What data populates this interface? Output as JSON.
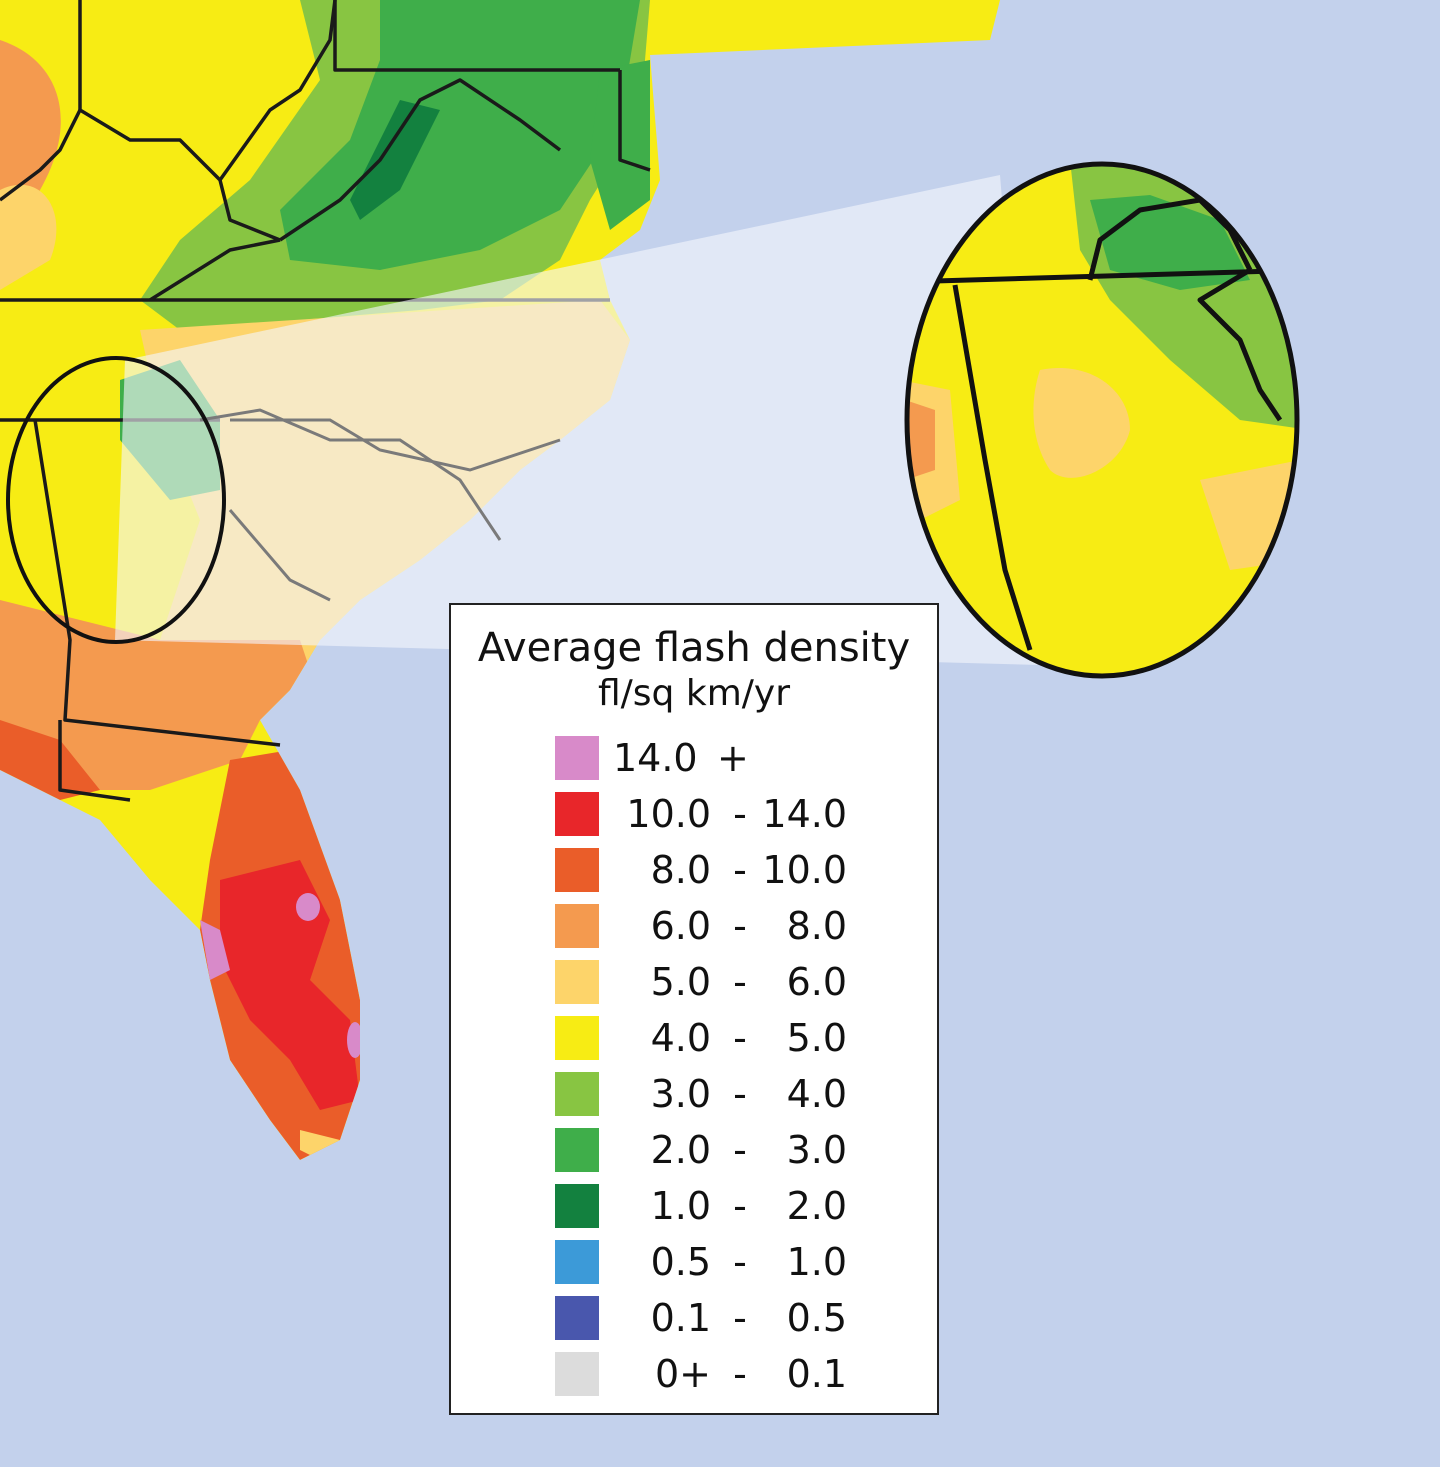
{
  "legend": {
    "title": "Average flash density",
    "units": "fl/sq km/yr",
    "classes": [
      {
        "low": "14.0",
        "sep": "+",
        "high": "",
        "color": "#d88ac9"
      },
      {
        "low": "10.0",
        "sep": "-",
        "high": "14.0",
        "color": "#e8262a"
      },
      {
        "low": "8.0",
        "sep": "-",
        "high": "10.0",
        "color": "#ea5d29"
      },
      {
        "low": "6.0",
        "sep": "-",
        "high": "8.0",
        "color": "#f49a4f"
      },
      {
        "low": "5.0",
        "sep": "-",
        "high": "6.0",
        "color": "#fdd46a"
      },
      {
        "low": "4.0",
        "sep": "-",
        "high": "5.0",
        "color": "#f7ec14"
      },
      {
        "low": "3.0",
        "sep": "-",
        "high": "4.0",
        "color": "#88c542"
      },
      {
        "low": "2.0",
        "sep": "-",
        "high": "3.0",
        "color": "#3fae4a"
      },
      {
        "low": "1.0",
        "sep": "-",
        "high": "2.0",
        "color": "#13813f"
      },
      {
        "low": "0.5",
        "sep": "-",
        "high": "1.0",
        "color": "#3c9ad8"
      },
      {
        "low": "0.1",
        "sep": "-",
        "high": "0.5",
        "color": "#4957ad"
      },
      {
        "low": "0+",
        "sep": "-",
        "high": "0.1",
        "color": "#dcdcdc"
      }
    ]
  },
  "colors": {
    "ocean": "#c3d1ec",
    "border": "#1a1a1a",
    "highlight_band": "#f4f6fb"
  }
}
